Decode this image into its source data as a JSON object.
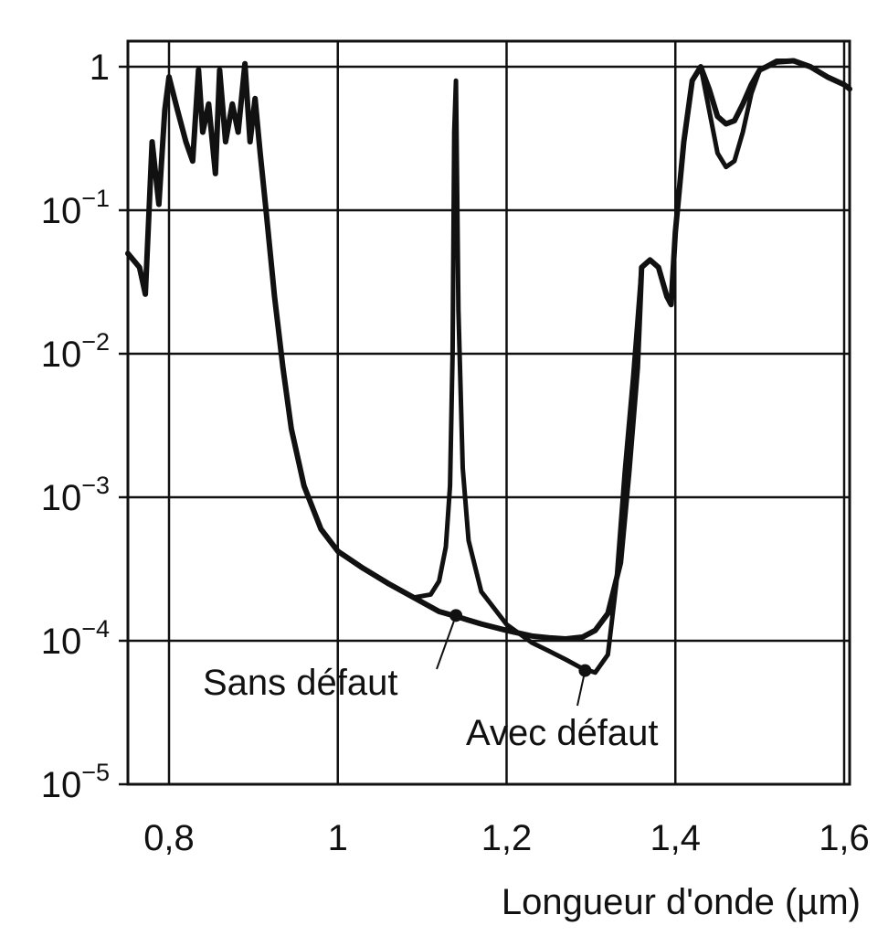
{
  "chart_data": {
    "type": "line",
    "xlabel": "Longueur d'onde (µm)",
    "ylabel": "",
    "title": "",
    "y_scale": "log",
    "xlim": [
      0.75,
      1.62
    ],
    "ylim": [
      1e-05,
      1.2
    ],
    "grid": true,
    "x_ticks": [
      {
        "value": 0.8,
        "label": "0,8"
      },
      {
        "value": 1.0,
        "label": "1"
      },
      {
        "value": 1.2,
        "label": "1,2"
      },
      {
        "value": 1.4,
        "label": "1,4"
      },
      {
        "value": 1.6,
        "label": "1,6"
      }
    ],
    "y_ticks": [
      {
        "value": 1,
        "base": "1",
        "exp": ""
      },
      {
        "value": 0.1,
        "base": "10",
        "exp": "−1"
      },
      {
        "value": 0.01,
        "base": "10",
        "exp": "−2"
      },
      {
        "value": 0.001,
        "base": "10",
        "exp": "−3"
      },
      {
        "value": 0.0001,
        "base": "10",
        "exp": "−4"
      },
      {
        "value": 1e-05,
        "base": "10",
        "exp": "−5"
      }
    ],
    "series": [
      {
        "label": "Sans défaut",
        "x": [
          0.75,
          0.765,
          0.772,
          0.78,
          0.788,
          0.795,
          0.8,
          0.81,
          0.82,
          0.828,
          0.835,
          0.84,
          0.847,
          0.855,
          0.86,
          0.867,
          0.875,
          0.882,
          0.89,
          0.896,
          0.902,
          0.908,
          0.915,
          0.925,
          0.935,
          0.945,
          0.96,
          0.98,
          1.0,
          1.03,
          1.06,
          1.09,
          1.12,
          1.14,
          1.17,
          1.2,
          1.23,
          1.25,
          1.27,
          1.29,
          1.305,
          1.32,
          1.335,
          1.345,
          1.355,
          1.36,
          1.37,
          1.38,
          1.39,
          1.395,
          1.4,
          1.41,
          1.42,
          1.43,
          1.44,
          1.45,
          1.46,
          1.47,
          1.48,
          1.49,
          1.5,
          1.52,
          1.54,
          1.56,
          1.58,
          1.6,
          1.62
        ],
        "y": [
          0.05,
          0.04,
          0.026,
          0.3,
          0.11,
          0.5,
          0.85,
          0.5,
          0.3,
          0.22,
          0.95,
          0.35,
          0.55,
          0.18,
          0.95,
          0.3,
          0.55,
          0.35,
          1.05,
          0.3,
          0.6,
          0.25,
          0.1,
          0.025,
          0.008,
          0.003,
          0.0012,
          0.0006,
          0.00042,
          0.00032,
          0.00025,
          0.0002,
          0.00016,
          0.000148,
          0.000131,
          0.000118,
          0.000108,
          0.000105,
          0.000103,
          0.000106,
          0.000118,
          0.000155,
          0.00035,
          0.0015,
          0.008,
          0.04,
          0.045,
          0.04,
          0.025,
          0.022,
          0.07,
          0.3,
          0.8,
          1.0,
          0.7,
          0.45,
          0.4,
          0.42,
          0.55,
          0.75,
          0.95,
          1.08,
          1.1,
          1.0,
          0.85,
          0.75,
          0.7
        ]
      },
      {
        "label": "Avec défaut",
        "x": [
          0.75,
          0.765,
          0.772,
          0.78,
          0.788,
          0.795,
          0.8,
          0.81,
          0.82,
          0.828,
          0.835,
          0.84,
          0.847,
          0.855,
          0.86,
          0.867,
          0.875,
          0.882,
          0.89,
          0.896,
          0.902,
          0.908,
          0.915,
          0.925,
          0.935,
          0.945,
          0.96,
          0.98,
          1.0,
          1.03,
          1.06,
          1.09,
          1.11,
          1.12,
          1.128,
          1.133,
          1.136,
          1.138,
          1.14,
          1.143,
          1.148,
          1.155,
          1.17,
          1.2,
          1.23,
          1.25,
          1.27,
          1.29,
          1.305,
          1.32,
          1.33,
          1.34,
          1.35,
          1.36,
          1.37,
          1.38,
          1.39,
          1.395,
          1.4,
          1.41,
          1.42,
          1.43,
          1.44,
          1.45,
          1.46,
          1.47,
          1.48,
          1.49,
          1.5,
          1.52,
          1.54,
          1.56,
          1.58,
          1.6,
          1.62
        ],
        "y": [
          0.05,
          0.04,
          0.026,
          0.3,
          0.11,
          0.5,
          0.85,
          0.5,
          0.3,
          0.22,
          0.95,
          0.35,
          0.55,
          0.18,
          0.95,
          0.3,
          0.55,
          0.35,
          1.05,
          0.3,
          0.6,
          0.25,
          0.1,
          0.025,
          0.008,
          0.003,
          0.0012,
          0.0006,
          0.00042,
          0.00032,
          0.00025,
          0.0002,
          0.00021,
          0.00026,
          0.00045,
          0.0012,
          0.01,
          0.35,
          0.8,
          0.02,
          0.0016,
          0.0005,
          0.00022,
          0.00013,
          9.7e-05,
          8.5e-05,
          7.4e-05,
          6.4e-05,
          6e-05,
          8e-05,
          0.00025,
          0.0015,
          0.007,
          0.04,
          0.045,
          0.04,
          0.025,
          0.022,
          0.07,
          0.3,
          0.8,
          1.0,
          0.5,
          0.25,
          0.2,
          0.22,
          0.35,
          0.65,
          0.95,
          1.1,
          1.1,
          1.0,
          0.85,
          0.75,
          0.7
        ]
      }
    ],
    "annotations": [
      {
        "text": "Sans défaut",
        "x": 1.14,
        "y": 0.00015
      },
      {
        "text": "Avec défaut",
        "x": 1.293,
        "y": 6.2e-05
      }
    ]
  }
}
